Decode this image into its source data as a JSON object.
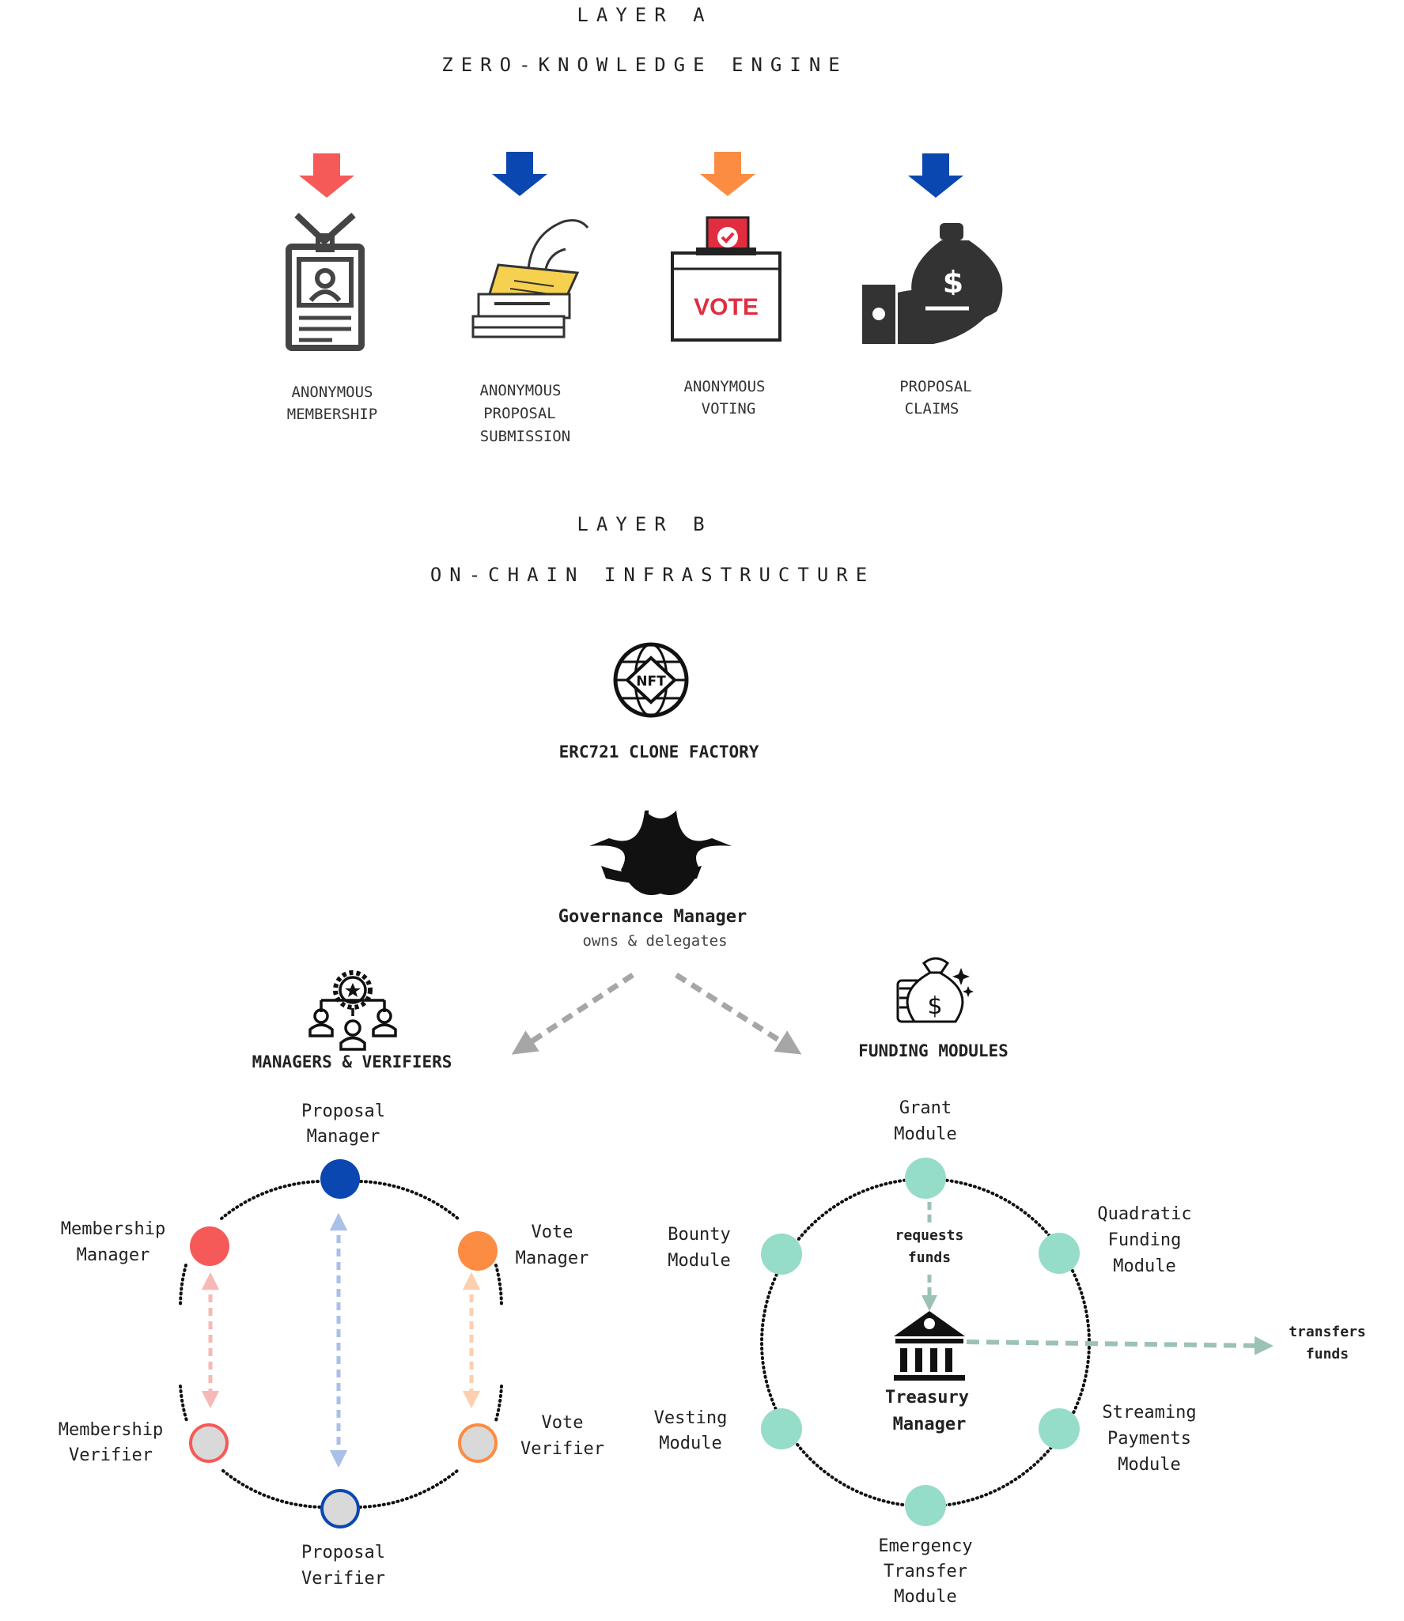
{
  "layer_a": {
    "title": "LAYER A",
    "subtitle": "ZERO-KNOWLEDGE ENGINE",
    "features": [
      {
        "icon": "id-badge-icon",
        "arrow_color": "#f55a58",
        "lines": [
          "ANONYMOUS",
          "MEMBERSHIP"
        ]
      },
      {
        "icon": "ballot-submission-icon",
        "arrow_color": "#0a47b0",
        "lines": [
          "ANONYMOUS",
          "PROPOSAL",
          "SUBMISSION"
        ]
      },
      {
        "icon": "ballot-box-icon",
        "arrow_color": "#fb8c42",
        "lines": [
          "ANONYMOUS",
          "VOTING"
        ]
      },
      {
        "icon": "money-bag-hand-icon",
        "arrow_color": "#0a47b0",
        "lines": [
          "PROPOSAL",
          "CLAIMS"
        ]
      }
    ],
    "ballot_box_text": "VOTE"
  },
  "layer_b": {
    "title": "LAYER B",
    "subtitle": "ON-CHAIN INFRASTRUCTURE",
    "factory": {
      "icon": "nft-globe-icon",
      "badge": "NFT",
      "label": "ERC721 CLONE FACTORY"
    },
    "governance": {
      "icon": "crown-icon",
      "label": "Governance Manager",
      "sublabel": "owns & delegates"
    },
    "managers_group": {
      "icon": "team-gear-icon",
      "label": "MANAGERS & VERIFIERS"
    },
    "funding_group": {
      "icon": "money-bag-icon",
      "label": "FUNDING MODULES"
    }
  },
  "managers_cycle": {
    "nodes": [
      {
        "id": "proposal-manager",
        "lines": [
          "Proposal",
          "Manager"
        ],
        "fill": "#0a47b0",
        "stroke": "#0a47b0"
      },
      {
        "id": "membership-manager",
        "lines": [
          "Membership",
          "Manager"
        ],
        "fill": "#f55a58",
        "stroke": "#f55a58"
      },
      {
        "id": "vote-manager",
        "lines": [
          "Vote",
          "Manager"
        ],
        "fill": "#fb8c42",
        "stroke": "#fb8c42"
      },
      {
        "id": "membership-verifier",
        "lines": [
          "Membership",
          "Verifier"
        ],
        "fill": "#d9d9d9",
        "stroke": "#f55a58"
      },
      {
        "id": "vote-verifier",
        "lines": [
          "Vote",
          "Verifier"
        ],
        "fill": "#d9d9d9",
        "stroke": "#fb8c42"
      },
      {
        "id": "proposal-verifier",
        "lines": [
          "Proposal",
          "Verifier"
        ],
        "fill": "#d9d9d9",
        "stroke": "#0a47b0"
      }
    ],
    "link_colors": {
      "membership": "#f7b9b7",
      "proposal": "#a9c0e8",
      "vote": "#fccfb0"
    }
  },
  "funding_cycle": {
    "node_color": "#95dcc9",
    "nodes": [
      {
        "id": "grant-module",
        "lines": [
          "Grant",
          "Module"
        ]
      },
      {
        "id": "bounty-module",
        "lines": [
          "Bounty",
          "Module"
        ]
      },
      {
        "id": "quadratic-funding-module",
        "lines": [
          "Quadratic",
          "Funding",
          "Module"
        ]
      },
      {
        "id": "vesting-module",
        "lines": [
          "Vesting",
          "Module"
        ]
      },
      {
        "id": "streaming-payments-module",
        "lines": [
          "Streaming",
          "Payments",
          "Module"
        ]
      },
      {
        "id": "emergency-transfer-module",
        "lines": [
          "Emergency",
          "Transfer",
          "Module"
        ]
      }
    ],
    "treasury": {
      "icon": "bank-icon",
      "lines": [
        "Treasury",
        "Manager"
      ]
    },
    "requests_label": [
      "requests",
      "funds"
    ],
    "transfers_label": [
      "transfers",
      "funds"
    ],
    "arrow_color": "#9cc1b6"
  }
}
